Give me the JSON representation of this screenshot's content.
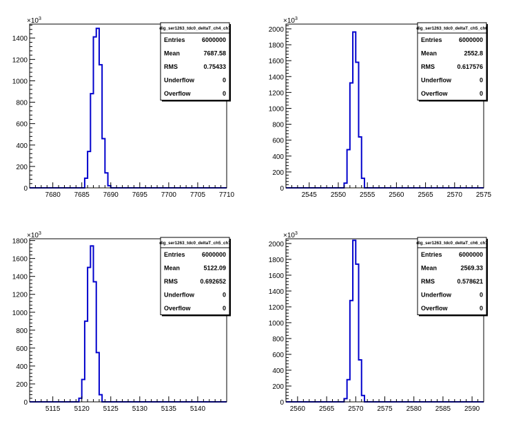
{
  "chart_data": [
    {
      "type": "histogram",
      "title": "dig_ser1263_tdc0_deltaT_ch4_ch7",
      "y_exponent": "x10^3",
      "xlim": [
        7676,
        7710
      ],
      "ylim": [
        0,
        1530
      ],
      "xticks": [
        7680,
        7685,
        7690,
        7695,
        7700,
        7705,
        7710
      ],
      "yticks": [
        0,
        200,
        400,
        600,
        800,
        1000,
        1200,
        1400
      ],
      "bin_width": 0.5,
      "bin_start": 7685.5,
      "counts": [
        90,
        340,
        880,
        1410,
        1490,
        1150,
        460,
        140,
        20
      ],
      "stats": {
        "entries": "6000000",
        "mean": "7687.58",
        "rms": "0.75433",
        "underflow": "0",
        "overflow": "0"
      }
    },
    {
      "type": "histogram",
      "title": "dig_ser1263_tdc0_deltaT_ch5_ch6",
      "y_exponent": "x10^3",
      "xlim": [
        2541,
        2575
      ],
      "ylim": [
        0,
        2060
      ],
      "xticks": [
        2545,
        2550,
        2555,
        2560,
        2565,
        2570,
        2575
      ],
      "yticks": [
        0,
        200,
        400,
        600,
        800,
        1000,
        1200,
        1400,
        1600,
        1800,
        2000
      ],
      "bin_width": 0.5,
      "bin_start": 2551,
      "counts": [
        60,
        480,
        1320,
        1960,
        1580,
        640,
        120
      ],
      "stats": {
        "entries": "6000000",
        "mean": "2552.8",
        "rms": "0.617576",
        "underflow": "0",
        "overflow": "0"
      }
    },
    {
      "type": "histogram",
      "title": "dig_ser1263_tdc0_deltaT_ch5_ch7",
      "y_exponent": "x10^3",
      "xlim": [
        5111,
        5145
      ],
      "ylim": [
        0,
        1820
      ],
      "xticks": [
        5115,
        5120,
        5125,
        5130,
        5135,
        5140
      ],
      "yticks": [
        0,
        200,
        400,
        600,
        800,
        1000,
        1200,
        1400,
        1600,
        1800
      ],
      "bin_width": 0.5,
      "bin_start": 5119.5,
      "counts": [
        40,
        250,
        900,
        1500,
        1740,
        1340,
        550,
        80
      ],
      "stats": {
        "entries": "6000000",
        "mean": "5122.09",
        "rms": "0.692652",
        "underflow": "0",
        "overflow": "0"
      }
    },
    {
      "type": "histogram",
      "title": "dig_ser1263_tdc0_deltaT_ch6_ch7",
      "y_exponent": "x10^3",
      "xlim": [
        2558,
        2592
      ],
      "ylim": [
        0,
        2060
      ],
      "xticks": [
        2560,
        2565,
        2570,
        2575,
        2580,
        2585,
        2590
      ],
      "yticks": [
        0,
        200,
        400,
        600,
        800,
        1000,
        1200,
        1400,
        1600,
        1800,
        2000
      ],
      "bin_width": 0.5,
      "bin_start": 2568,
      "counts": [
        40,
        280,
        1280,
        2040,
        1740,
        530,
        80
      ],
      "stats": {
        "entries": "6000000",
        "mean": "2569.33",
        "rms": "0.578621",
        "underflow": "0",
        "overflow": "0"
      }
    }
  ],
  "stats_labels": {
    "entries": "Entries",
    "mean": "Mean",
    "rms": "RMS",
    "underflow": "Underflow",
    "overflow": "Overflow"
  },
  "colors": {
    "histogram_line": "#0000cc",
    "frame": "#000000",
    "background": "#ffffff"
  }
}
